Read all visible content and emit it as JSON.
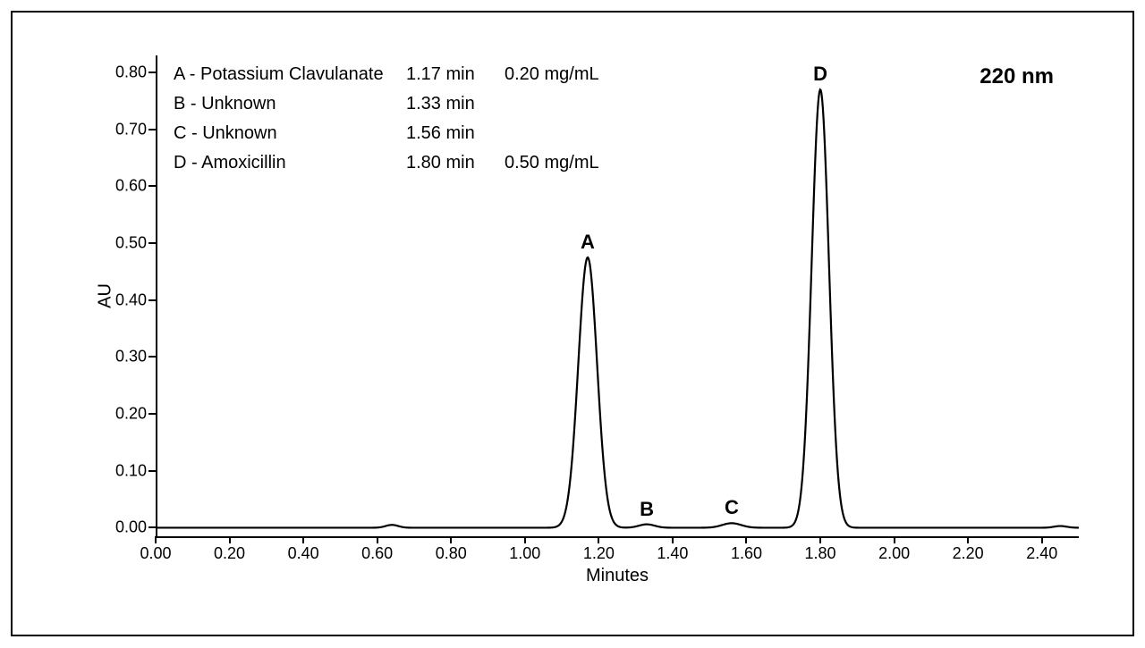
{
  "figure": {
    "type": "chromatogram-line",
    "background_color": "#ffffff",
    "frame_color": "#000000",
    "trace_color": "#000000",
    "trace_width": 2.2,
    "x_axis": {
      "title": "Minutes",
      "min": 0.0,
      "max": 2.5,
      "ticks": [
        0.0,
        0.2,
        0.4,
        0.6,
        0.8,
        1.0,
        1.2,
        1.4,
        1.6,
        1.8,
        2.0,
        2.2,
        2.4
      ],
      "tick_labels": [
        "0.00",
        "0.20",
        "0.40",
        "0.60",
        "0.80",
        "1.00",
        "1.20",
        "1.40",
        "1.60",
        "1.80",
        "2.00",
        "2.20",
        "2.40"
      ],
      "label_fontsize": 18,
      "title_fontsize": 20
    },
    "y_axis": {
      "title": "AU",
      "min": -0.015,
      "max": 0.83,
      "ticks": [
        0.0,
        0.1,
        0.2,
        0.3,
        0.4,
        0.5,
        0.6,
        0.7,
        0.8
      ],
      "tick_labels": [
        "0.00",
        "0.10",
        "0.20",
        "0.30",
        "0.40",
        "0.50",
        "0.60",
        "0.70",
        "0.80"
      ],
      "label_fontsize": 18,
      "title_fontsize": 20
    },
    "wavelength_label": "220 nm",
    "peaks": [
      {
        "id": "A",
        "name": "A - Potassium Clavulanate",
        "rt_label": "1.17 min",
        "conc_label": "0.20 mg/mL",
        "rt": 1.17,
        "height": 0.475,
        "width": 0.06
      },
      {
        "id": "B",
        "name": "B - Unknown",
        "rt_label": "1.33 min",
        "conc_label": "",
        "rt": 1.33,
        "height": 0.006,
        "width": 0.05
      },
      {
        "id": "C",
        "name": "C - Unknown",
        "rt_label": "1.56 min",
        "conc_label": "",
        "rt": 1.56,
        "height": 0.008,
        "width": 0.06
      },
      {
        "id": "D",
        "name": "D - Amoxicillin",
        "rt_label": "1.80 min",
        "conc_label": "0.50 mg/mL",
        "rt": 1.8,
        "height": 0.77,
        "width": 0.055
      }
    ],
    "minor_bumps": [
      {
        "rt": 0.64,
        "height": 0.005,
        "width": 0.04
      },
      {
        "rt": 2.45,
        "height": 0.003,
        "width": 0.04
      }
    ],
    "baseline": 0.0,
    "peak_label_fontsize": 22,
    "legend_fontsize": 20,
    "wavelength_fontsize": 24
  }
}
